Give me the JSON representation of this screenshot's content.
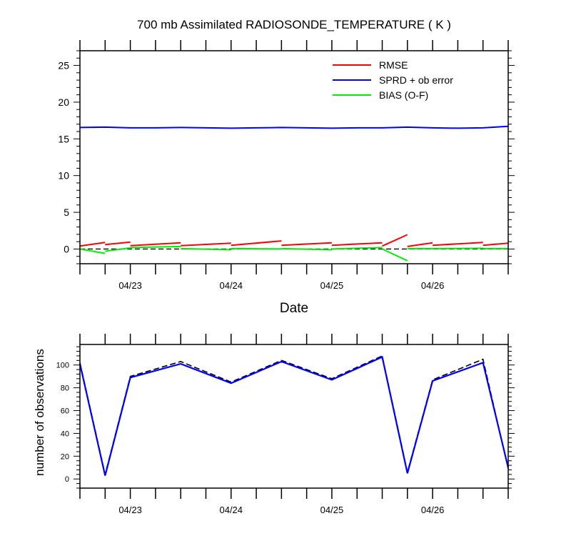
{
  "chart_data": [
    {
      "type": "line",
      "title": "700 mb Assimilated RADIOSONDE_TEMPERATURE ( K )",
      "xlabel": "Date",
      "ylabel": "",
      "xlim": [
        0,
        17
      ],
      "ylim": [
        -2,
        27
      ],
      "yticks": [
        0,
        5,
        10,
        15,
        20,
        25
      ],
      "xticks": [
        {
          "x": 2,
          "label": "04/23"
        },
        {
          "x": 6,
          "label": "04/24"
        },
        {
          "x": 10,
          "label": "04/25"
        },
        {
          "x": 14,
          "label": "04/26"
        }
      ],
      "legend_position": "top-right",
      "zero_line": {
        "y": 0,
        "style": "dashed",
        "color": "#000000"
      },
      "series": [
        {
          "name": "RMSE",
          "color": "#ff0000",
          "segments": [
            [
              [
                0,
                0.4
              ],
              [
                1,
                0.9
              ]
            ],
            [
              [
                1,
                0.6
              ],
              [
                2,
                0.95
              ]
            ],
            [
              [
                2,
                0.45
              ],
              [
                4,
                0.85
              ]
            ],
            [
              [
                4,
                0.45
              ],
              [
                6,
                0.8
              ]
            ],
            [
              [
                6,
                0.5
              ],
              [
                8,
                1.1
              ]
            ],
            [
              [
                8,
                0.5
              ],
              [
                10,
                0.85
              ]
            ],
            [
              [
                10,
                0.5
              ],
              [
                12,
                0.85
              ]
            ],
            [
              [
                12,
                0.4
              ],
              [
                13,
                1.95
              ]
            ],
            [
              [
                13,
                0.35
              ],
              [
                14,
                0.85
              ]
            ],
            [
              [
                14,
                0.5
              ],
              [
                16,
                0.9
              ]
            ],
            [
              [
                16,
                0.5
              ],
              [
                17,
                0.8
              ]
            ]
          ]
        },
        {
          "name": "SPRD + ob error",
          "color": "#0000ff",
          "segments": [
            [
              [
                0,
                16.55
              ],
              [
                1,
                16.6
              ],
              [
                2,
                16.5
              ],
              [
                3,
                16.5
              ],
              [
                4,
                16.55
              ],
              [
                5,
                16.5
              ],
              [
                6,
                16.45
              ],
              [
                7,
                16.5
              ],
              [
                8,
                16.55
              ],
              [
                9,
                16.5
              ],
              [
                10,
                16.45
              ],
              [
                11,
                16.5
              ],
              [
                12,
                16.5
              ],
              [
                13,
                16.6
              ],
              [
                14,
                16.5
              ],
              [
                15,
                16.45
              ],
              [
                16,
                16.5
              ],
              [
                17,
                16.7
              ]
            ]
          ]
        },
        {
          "name": "BIAS (O-F)",
          "color": "#00ee00",
          "segments": [
            [
              [
                0,
                0.0
              ],
              [
                1,
                -0.6
              ]
            ],
            [
              [
                1,
                -0.3
              ],
              [
                2,
                0.15
              ]
            ],
            [
              [
                2,
                0.2
              ],
              [
                4,
                0.35
              ]
            ],
            [
              [
                4,
                0.05
              ],
              [
                6,
                -0.1
              ]
            ],
            [
              [
                6,
                0.05
              ],
              [
                8,
                0.0
              ]
            ],
            [
              [
                8,
                0.05
              ],
              [
                10,
                -0.1
              ]
            ],
            [
              [
                10,
                0.0
              ],
              [
                12,
                0.2
              ]
            ],
            [
              [
                12,
                0.0
              ],
              [
                13,
                -1.6
              ]
            ],
            [
              [
                13,
                0.05
              ],
              [
                14,
                0.05
              ]
            ],
            [
              [
                14,
                0.05
              ],
              [
                16,
                0.1
              ]
            ],
            [
              [
                16,
                0.05
              ],
              [
                17,
                0.05
              ]
            ]
          ]
        }
      ]
    },
    {
      "type": "line",
      "title": "",
      "xlabel": "",
      "ylabel": "number of observations",
      "xlim": [
        0,
        17
      ],
      "ylim": [
        -8,
        118
      ],
      "yticks": [
        0,
        20,
        40,
        60,
        80,
        100
      ],
      "xticks": [
        {
          "x": 2,
          "label": "04/23"
        },
        {
          "x": 6,
          "label": "04/24"
        },
        {
          "x": 10,
          "label": "04/25"
        },
        {
          "x": 14,
          "label": "04/26"
        }
      ],
      "series": [
        {
          "name": "observations (dashed)",
          "color": "#000000",
          "style": "dashed",
          "x": [
            0,
            1,
            2,
            4,
            6,
            8,
            10,
            12,
            13,
            14,
            16,
            17
          ],
          "values": [
            102,
            4,
            90,
            103,
            85,
            104,
            88,
            108,
            6,
            87,
            105,
            9
          ]
        },
        {
          "name": "observations (solid)",
          "color": "#0000ff",
          "style": "solid",
          "x": [
            0,
            1,
            2,
            4,
            6,
            8,
            10,
            12,
            13,
            14,
            16,
            17
          ],
          "values": [
            101,
            3,
            89,
            101,
            84,
            103,
            87,
            107,
            5,
            86,
            102,
            10
          ]
        }
      ]
    }
  ]
}
